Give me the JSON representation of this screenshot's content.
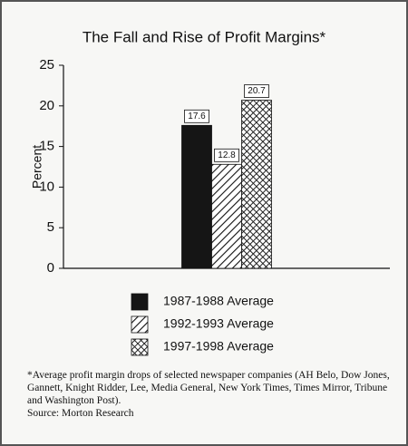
{
  "chart_data": {
    "type": "bar",
    "title": "The Fall and Rise of Profit Margins*",
    "y_label": "Percent",
    "categories": [
      null
    ],
    "series": [
      {
        "name": "1987-1988 Average",
        "color": "#151515",
        "pattern": "solid",
        "values": [
          17.6
        ]
      },
      {
        "name": "1992-1993 Average",
        "color": "#151515",
        "pattern": "diagonal",
        "values": [
          12.8
        ]
      },
      {
        "name": "1997-1998 Average",
        "color": "#151515",
        "pattern": "crosshatch",
        "values": [
          20.7
        ]
      }
    ],
    "ylim": [
      0,
      25
    ],
    "yticks": [
      0,
      5,
      10,
      15,
      20,
      25
    ],
    "grid": false,
    "footnote": "*Average profit margin drops of selected newspaper companies (AH Belo, Dow Jones, Gannett, Knight Ridder, Lee, Media General, New York Times, Times Mirror, Tribune and Washington Post).",
    "source": "Source: Morton Research"
  }
}
